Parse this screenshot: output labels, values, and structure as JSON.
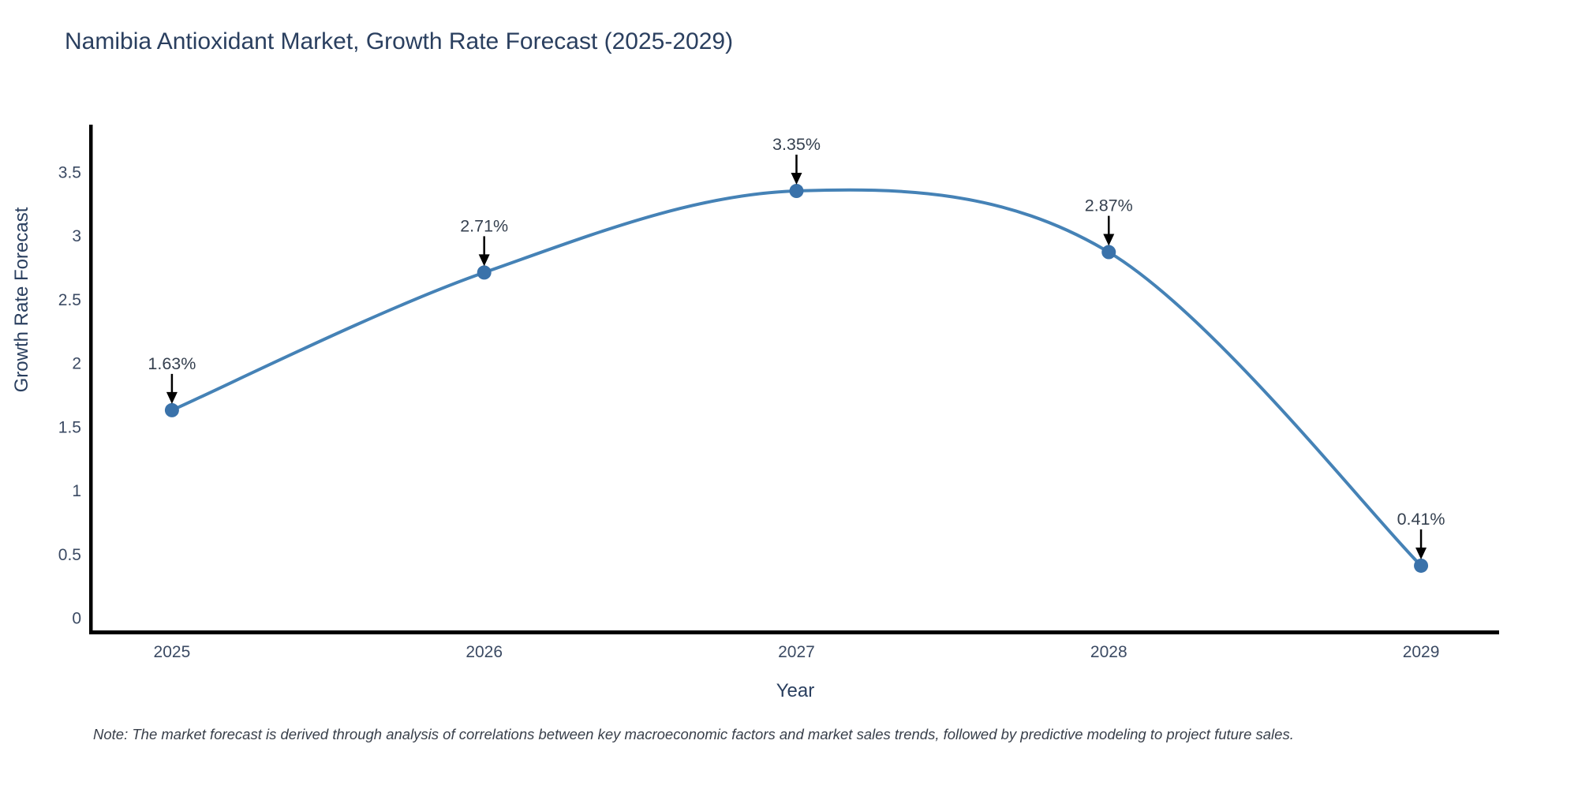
{
  "title": "Namibia Antioxidant Market, Growth Rate Forecast (2025-2029)",
  "note": "Note: The market forecast is derived through analysis of correlations between key macroeconomic factors and market sales trends, followed by predictive modeling to project future sales.",
  "chart_data": {
    "type": "line",
    "title": "Namibia Antioxidant Market, Growth Rate Forecast (2025-2029)",
    "xlabel": "Year",
    "ylabel": "Growth Rate Forecast",
    "x": [
      2025,
      2026,
      2027,
      2028,
      2029
    ],
    "series": [
      {
        "name": "Growth Rate Forecast",
        "values": [
          1.63,
          2.71,
          3.35,
          2.87,
          0.41
        ]
      }
    ],
    "point_labels": [
      "1.63%",
      "2.71%",
      "3.35%",
      "2.87%",
      "0.41%"
    ],
    "xticks": [
      "2025",
      "2026",
      "2027",
      "2028",
      "2029"
    ],
    "yticks": [
      0,
      0.5,
      1,
      1.5,
      2,
      2.5,
      3,
      3.5
    ],
    "xlim": [
      2024.74,
      2029.25
    ],
    "ylim": [
      -0.11,
      3.87
    ],
    "line_shape": "spline",
    "grid": false,
    "legend_position": "none",
    "colors": {
      "line": "#4582b6",
      "marker": "#3a72aa",
      "arrow": "#000000",
      "tick_text": "#3b4a63",
      "annotation_text": "#35404f",
      "title_text": "#2a3f5f",
      "axis": "#000000",
      "background": "#ffffff"
    }
  }
}
